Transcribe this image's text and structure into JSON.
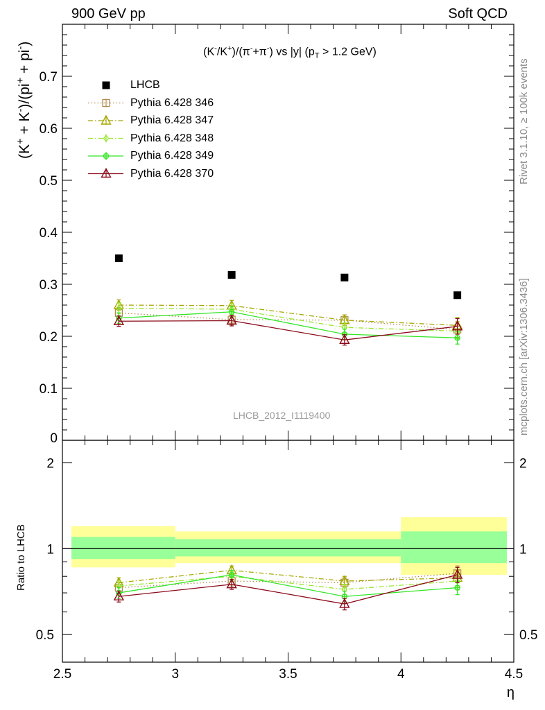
{
  "header": {
    "left": "900 GeV pp",
    "right": "Soft QCD"
  },
  "side": {
    "rivet": "Rivet 3.1.10, ≥ 100k events",
    "mcplots": "mcplots.cern.ch [arXiv:1306.3436]"
  },
  "watermark": "LHCB_2012_I1119400",
  "title_parts": {
    "a": "(K",
    "b": "-",
    "c": "/K",
    "d": "+",
    "e": ")/(π",
    "f": "-",
    "g": "+π",
    "h": "-",
    "i": ") vs |y| (p",
    "j": "T",
    "k": " > 1.2 GeV)"
  },
  "ylabel_top_parts": {
    "a": "(K",
    "b": "+",
    "c": " + K",
    "d": "-",
    "e": ")/(pi",
    "f": "+",
    "g": " + pi",
    "h": "-",
    "i": ")"
  },
  "ylabel_bottom": "Ratio to LHCB",
  "xlabel": "η",
  "colors": {
    "lhcb": "#000000",
    "p346": "#b08b4f",
    "p347": "#a5a800",
    "p348": "#99e62e",
    "p349": "#33e626",
    "p370": "#8b0a1a",
    "band_inner": "#99ff99",
    "band_outer": "#ffff99"
  },
  "chart_data": [
    {
      "type": "scatter",
      "panel": "main",
      "title": "(K-/K+)/(π-+π-) vs |y| (pT > 1.2 GeV)",
      "xlabel": "",
      "ylabel": "(K+ + K-)/(pi+ + pi-)",
      "xlim": [
        2.5,
        4.5
      ],
      "ylim": [
        0,
        0.8
      ],
      "yticks": [
        0.1,
        0.2,
        0.3,
        0.4,
        0.5,
        0.6,
        0.7
      ],
      "ytick_labels": [
        "0.1",
        "0.2",
        "0.3",
        "0.4",
        "0.5",
        "0.6",
        "0.7"
      ],
      "y_bottom_label": "0",
      "legend_position": "top-left",
      "x": [
        2.75,
        3.25,
        3.75,
        4.25
      ],
      "series": [
        {
          "name": "LHCB",
          "marker": "square-filled",
          "values": [
            0.35,
            0.318,
            0.313,
            0.279
          ],
          "errors": [
            0.003,
            0.003,
            0.003,
            0.003
          ]
        },
        {
          "name": "Pythia 6.428 346",
          "marker": "square-open",
          "line": "dotted",
          "values": [
            0.245,
            0.232,
            0.231,
            0.213
          ],
          "errors": [
            0.01,
            0.01,
            0.01,
            0.015
          ]
        },
        {
          "name": "Pythia 6.428 347",
          "marker": "triangle-open",
          "line": "dashdot",
          "values": [
            0.26,
            0.259,
            0.231,
            0.221
          ],
          "errors": [
            0.01,
            0.01,
            0.01,
            0.015
          ]
        },
        {
          "name": "Pythia 6.428 348",
          "marker": "diamond-open",
          "line": "dashdot",
          "values": [
            0.254,
            0.252,
            0.217,
            0.21
          ],
          "errors": [
            0.01,
            0.01,
            0.01,
            0.015
          ]
        },
        {
          "name": "Pythia 6.428 349",
          "marker": "circle-cross",
          "line": "solid",
          "values": [
            0.235,
            0.247,
            0.204,
            0.197
          ],
          "errors": [
            0.01,
            0.01,
            0.01,
            0.012
          ]
        },
        {
          "name": "Pythia 6.428 370",
          "marker": "triangle-open",
          "line": "solid",
          "values": [
            0.229,
            0.23,
            0.193,
            0.219
          ],
          "errors": [
            0.01,
            0.01,
            0.01,
            0.015
          ]
        }
      ]
    },
    {
      "type": "scatter",
      "panel": "ratio",
      "xlabel": "η",
      "ylabel": "Ratio to LHCB",
      "xlim": [
        2.5,
        4.5
      ],
      "ylim": [
        0.4,
        2.4
      ],
      "y_scale": "log",
      "yticks": [
        0.5,
        1,
        2
      ],
      "ytick_labels": [
        "0.5",
        "1",
        "2"
      ],
      "xticks": [
        2.5,
        3,
        3.5,
        4,
        4.5
      ],
      "xtick_labels": [
        "2.5",
        "3",
        "3.5",
        "4",
        "4.5"
      ],
      "x": [
        2.75,
        3.25,
        3.75,
        4.25
      ],
      "bins": [
        [
          2.5,
          3.0
        ],
        [
          3.0,
          4.0
        ],
        [
          4.0,
          4.5
        ]
      ],
      "band_inner": [
        [
          0.92,
          1.1
        ],
        [
          0.94,
          1.08
        ],
        [
          0.89,
          1.15
        ]
      ],
      "band_outer": [
        [
          0.86,
          1.2
        ],
        [
          0.89,
          1.15
        ],
        [
          0.81,
          1.29
        ]
      ],
      "series": [
        {
          "name": "Pythia 6.428 346",
          "values": [
            0.73,
            0.77,
            0.76,
            0.82
          ],
          "errors": [
            0.03,
            0.03,
            0.03,
            0.05
          ]
        },
        {
          "name": "Pythia 6.428 347",
          "values": [
            0.76,
            0.84,
            0.77,
            0.79
          ],
          "errors": [
            0.03,
            0.03,
            0.03,
            0.05
          ]
        },
        {
          "name": "Pythia 6.428 348",
          "values": [
            0.74,
            0.8,
            0.72,
            0.77
          ],
          "errors": [
            0.03,
            0.03,
            0.03,
            0.05
          ]
        },
        {
          "name": "Pythia 6.428 349",
          "values": [
            0.7,
            0.81,
            0.68,
            0.73
          ],
          "errors": [
            0.03,
            0.03,
            0.03,
            0.04
          ]
        },
        {
          "name": "Pythia 6.428 370",
          "values": [
            0.68,
            0.75,
            0.64,
            0.81
          ],
          "errors": [
            0.03,
            0.03,
            0.03,
            0.05
          ]
        }
      ]
    }
  ]
}
